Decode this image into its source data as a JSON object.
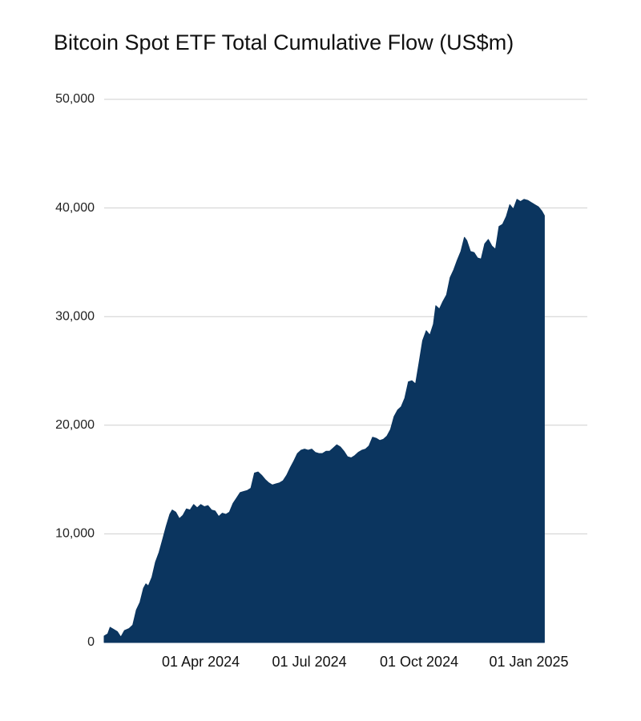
{
  "chart_data": {
    "type": "area",
    "title": "Bitcoin Spot ETF Total Cumulative Flow (US$m)",
    "xlabel": "",
    "ylabel": "",
    "ylim": [
      0,
      50000
    ],
    "grid": true,
    "color": "#0b355f",
    "y_ticks": [
      0,
      10000,
      20000,
      30000,
      40000,
      50000
    ],
    "y_tick_labels": [
      "0",
      "10,000",
      "20,000",
      "30,000",
      "40,000",
      "50,000"
    ],
    "x_ticks": [
      {
        "label": "01 Apr 2024",
        "day": 81
      },
      {
        "label": "01 Jul 2024",
        "day": 172
      },
      {
        "label": "01 Oct 2024",
        "day": 264
      },
      {
        "label": "01 Jan 2025",
        "day": 356
      }
    ],
    "x_range_days": [
      0,
      405
    ],
    "x_origin_date": "2024-01-11",
    "series": [
      {
        "name": "Total Cumulative Flow",
        "points": [
          [
            0,
            600
          ],
          [
            3,
            800
          ],
          [
            5,
            1400
          ],
          [
            8,
            1200
          ],
          [
            11,
            1000
          ],
          [
            14,
            500
          ],
          [
            17,
            1100
          ],
          [
            21,
            1300
          ],
          [
            24,
            1600
          ],
          [
            27,
            3000
          ],
          [
            30,
            3700
          ],
          [
            33,
            5000
          ],
          [
            35,
            5400
          ],
          [
            37,
            5200
          ],
          [
            40,
            6000
          ],
          [
            43,
            7400
          ],
          [
            46,
            8300
          ],
          [
            49,
            9500
          ],
          [
            52,
            10700
          ],
          [
            55,
            11800
          ],
          [
            57,
            12200
          ],
          [
            60,
            12000
          ],
          [
            63,
            11400
          ],
          [
            66,
            11700
          ],
          [
            69,
            12300
          ],
          [
            72,
            12200
          ],
          [
            75,
            12700
          ],
          [
            78,
            12400
          ],
          [
            81,
            12700
          ],
          [
            84,
            12500
          ],
          [
            87,
            12600
          ],
          [
            90,
            12200
          ],
          [
            93,
            12100
          ],
          [
            96,
            11600
          ],
          [
            99,
            11900
          ],
          [
            102,
            11800
          ],
          [
            105,
            12000
          ],
          [
            108,
            12800
          ],
          [
            111,
            13300
          ],
          [
            114,
            13800
          ],
          [
            117,
            13900
          ],
          [
            120,
            14000
          ],
          [
            123,
            14200
          ],
          [
            126,
            15600
          ],
          [
            129,
            15700
          ],
          [
            132,
            15400
          ],
          [
            135,
            15000
          ],
          [
            138,
            14700
          ],
          [
            141,
            14500
          ],
          [
            144,
            14600
          ],
          [
            147,
            14700
          ],
          [
            150,
            14900
          ],
          [
            153,
            15400
          ],
          [
            156,
            16100
          ],
          [
            159,
            16700
          ],
          [
            162,
            17400
          ],
          [
            165,
            17700
          ],
          [
            168,
            17800
          ],
          [
            171,
            17700
          ],
          [
            174,
            17800
          ],
          [
            177,
            17500
          ],
          [
            180,
            17400
          ],
          [
            183,
            17400
          ],
          [
            186,
            17600
          ],
          [
            189,
            17600
          ],
          [
            192,
            17900
          ],
          [
            195,
            18200
          ],
          [
            198,
            18000
          ],
          [
            201,
            17600
          ],
          [
            204,
            17100
          ],
          [
            207,
            17000
          ],
          [
            210,
            17200
          ],
          [
            213,
            17500
          ],
          [
            216,
            17700
          ],
          [
            219,
            17800
          ],
          [
            222,
            18100
          ],
          [
            225,
            18900
          ],
          [
            228,
            18800
          ],
          [
            231,
            18600
          ],
          [
            234,
            18700
          ],
          [
            237,
            19000
          ],
          [
            240,
            19600
          ],
          [
            243,
            20800
          ],
          [
            246,
            21400
          ],
          [
            249,
            21700
          ],
          [
            252,
            22500
          ],
          [
            255,
            24000
          ],
          [
            258,
            24100
          ],
          [
            261,
            23800
          ],
          [
            264,
            25800
          ],
          [
            267,
            27800
          ],
          [
            270,
            28700
          ],
          [
            273,
            28300
          ],
          [
            276,
            29300
          ],
          [
            278,
            31000
          ],
          [
            281,
            30700
          ],
          [
            284,
            31400
          ],
          [
            287,
            32000
          ],
          [
            290,
            33600
          ],
          [
            293,
            34300
          ],
          [
            296,
            35200
          ],
          [
            299,
            36000
          ],
          [
            302,
            37300
          ],
          [
            304,
            37000
          ],
          [
            307,
            36000
          ],
          [
            310,
            35900
          ],
          [
            313,
            35400
          ],
          [
            316,
            35300
          ],
          [
            319,
            36700
          ],
          [
            322,
            37100
          ],
          [
            325,
            36500
          ],
          [
            328,
            36200
          ],
          [
            331,
            38300
          ],
          [
            334,
            38500
          ],
          [
            337,
            39200
          ],
          [
            340,
            40300
          ],
          [
            343,
            39900
          ],
          [
            346,
            40800
          ],
          [
            349,
            40600
          ],
          [
            352,
            40800
          ],
          [
            355,
            40700
          ],
          [
            358,
            40500
          ],
          [
            361,
            40300
          ],
          [
            364,
            40100
          ],
          [
            367,
            39700
          ],
          [
            369,
            39300
          ]
        ]
      }
    ]
  }
}
